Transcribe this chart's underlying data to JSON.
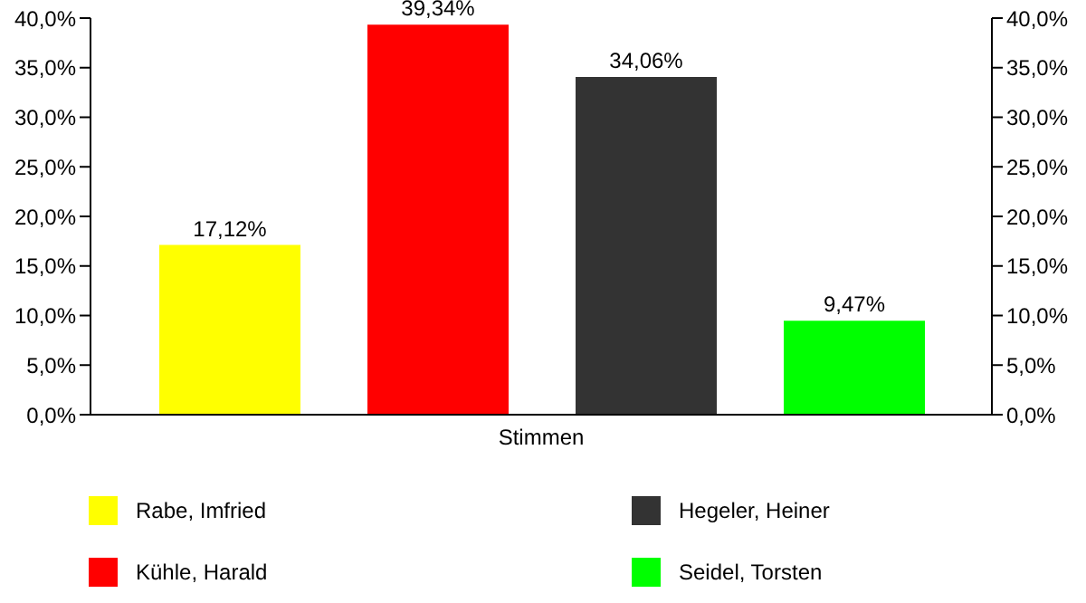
{
  "chart_data": {
    "type": "bar",
    "categories": [
      "Stimmen"
    ],
    "series": [
      {
        "name": "Rabe, Imfried",
        "color": "#ffff00",
        "values": [
          17.12
        ],
        "value_labels": [
          "17,12%"
        ]
      },
      {
        "name": "Kühle, Harald",
        "color": "#ff0000",
        "values": [
          39.34
        ],
        "value_labels": [
          "39,34%"
        ]
      },
      {
        "name": "Hegeler, Heiner",
        "color": "#333333",
        "values": [
          34.06
        ],
        "value_labels": [
          "34,06%"
        ]
      },
      {
        "name": "Seidel, Torsten",
        "color": "#00ff00",
        "values": [
          9.47
        ],
        "value_labels": [
          "9,47%"
        ]
      }
    ],
    "ylim": [
      0,
      40
    ],
    "yticks": [
      {
        "value": 0,
        "label": "0,0%"
      },
      {
        "value": 5,
        "label": "5,0%"
      },
      {
        "value": 10,
        "label": "10,0%"
      },
      {
        "value": 15,
        "label": "15,0%"
      },
      {
        "value": 20,
        "label": "20,0%"
      },
      {
        "value": 25,
        "label": "25,0%"
      },
      {
        "value": 30,
        "label": "30,0%"
      },
      {
        "value": 35,
        "label": "35,0%"
      },
      {
        "value": 40,
        "label": "40,0%"
      }
    ],
    "grid": false,
    "legend": "bottom"
  }
}
